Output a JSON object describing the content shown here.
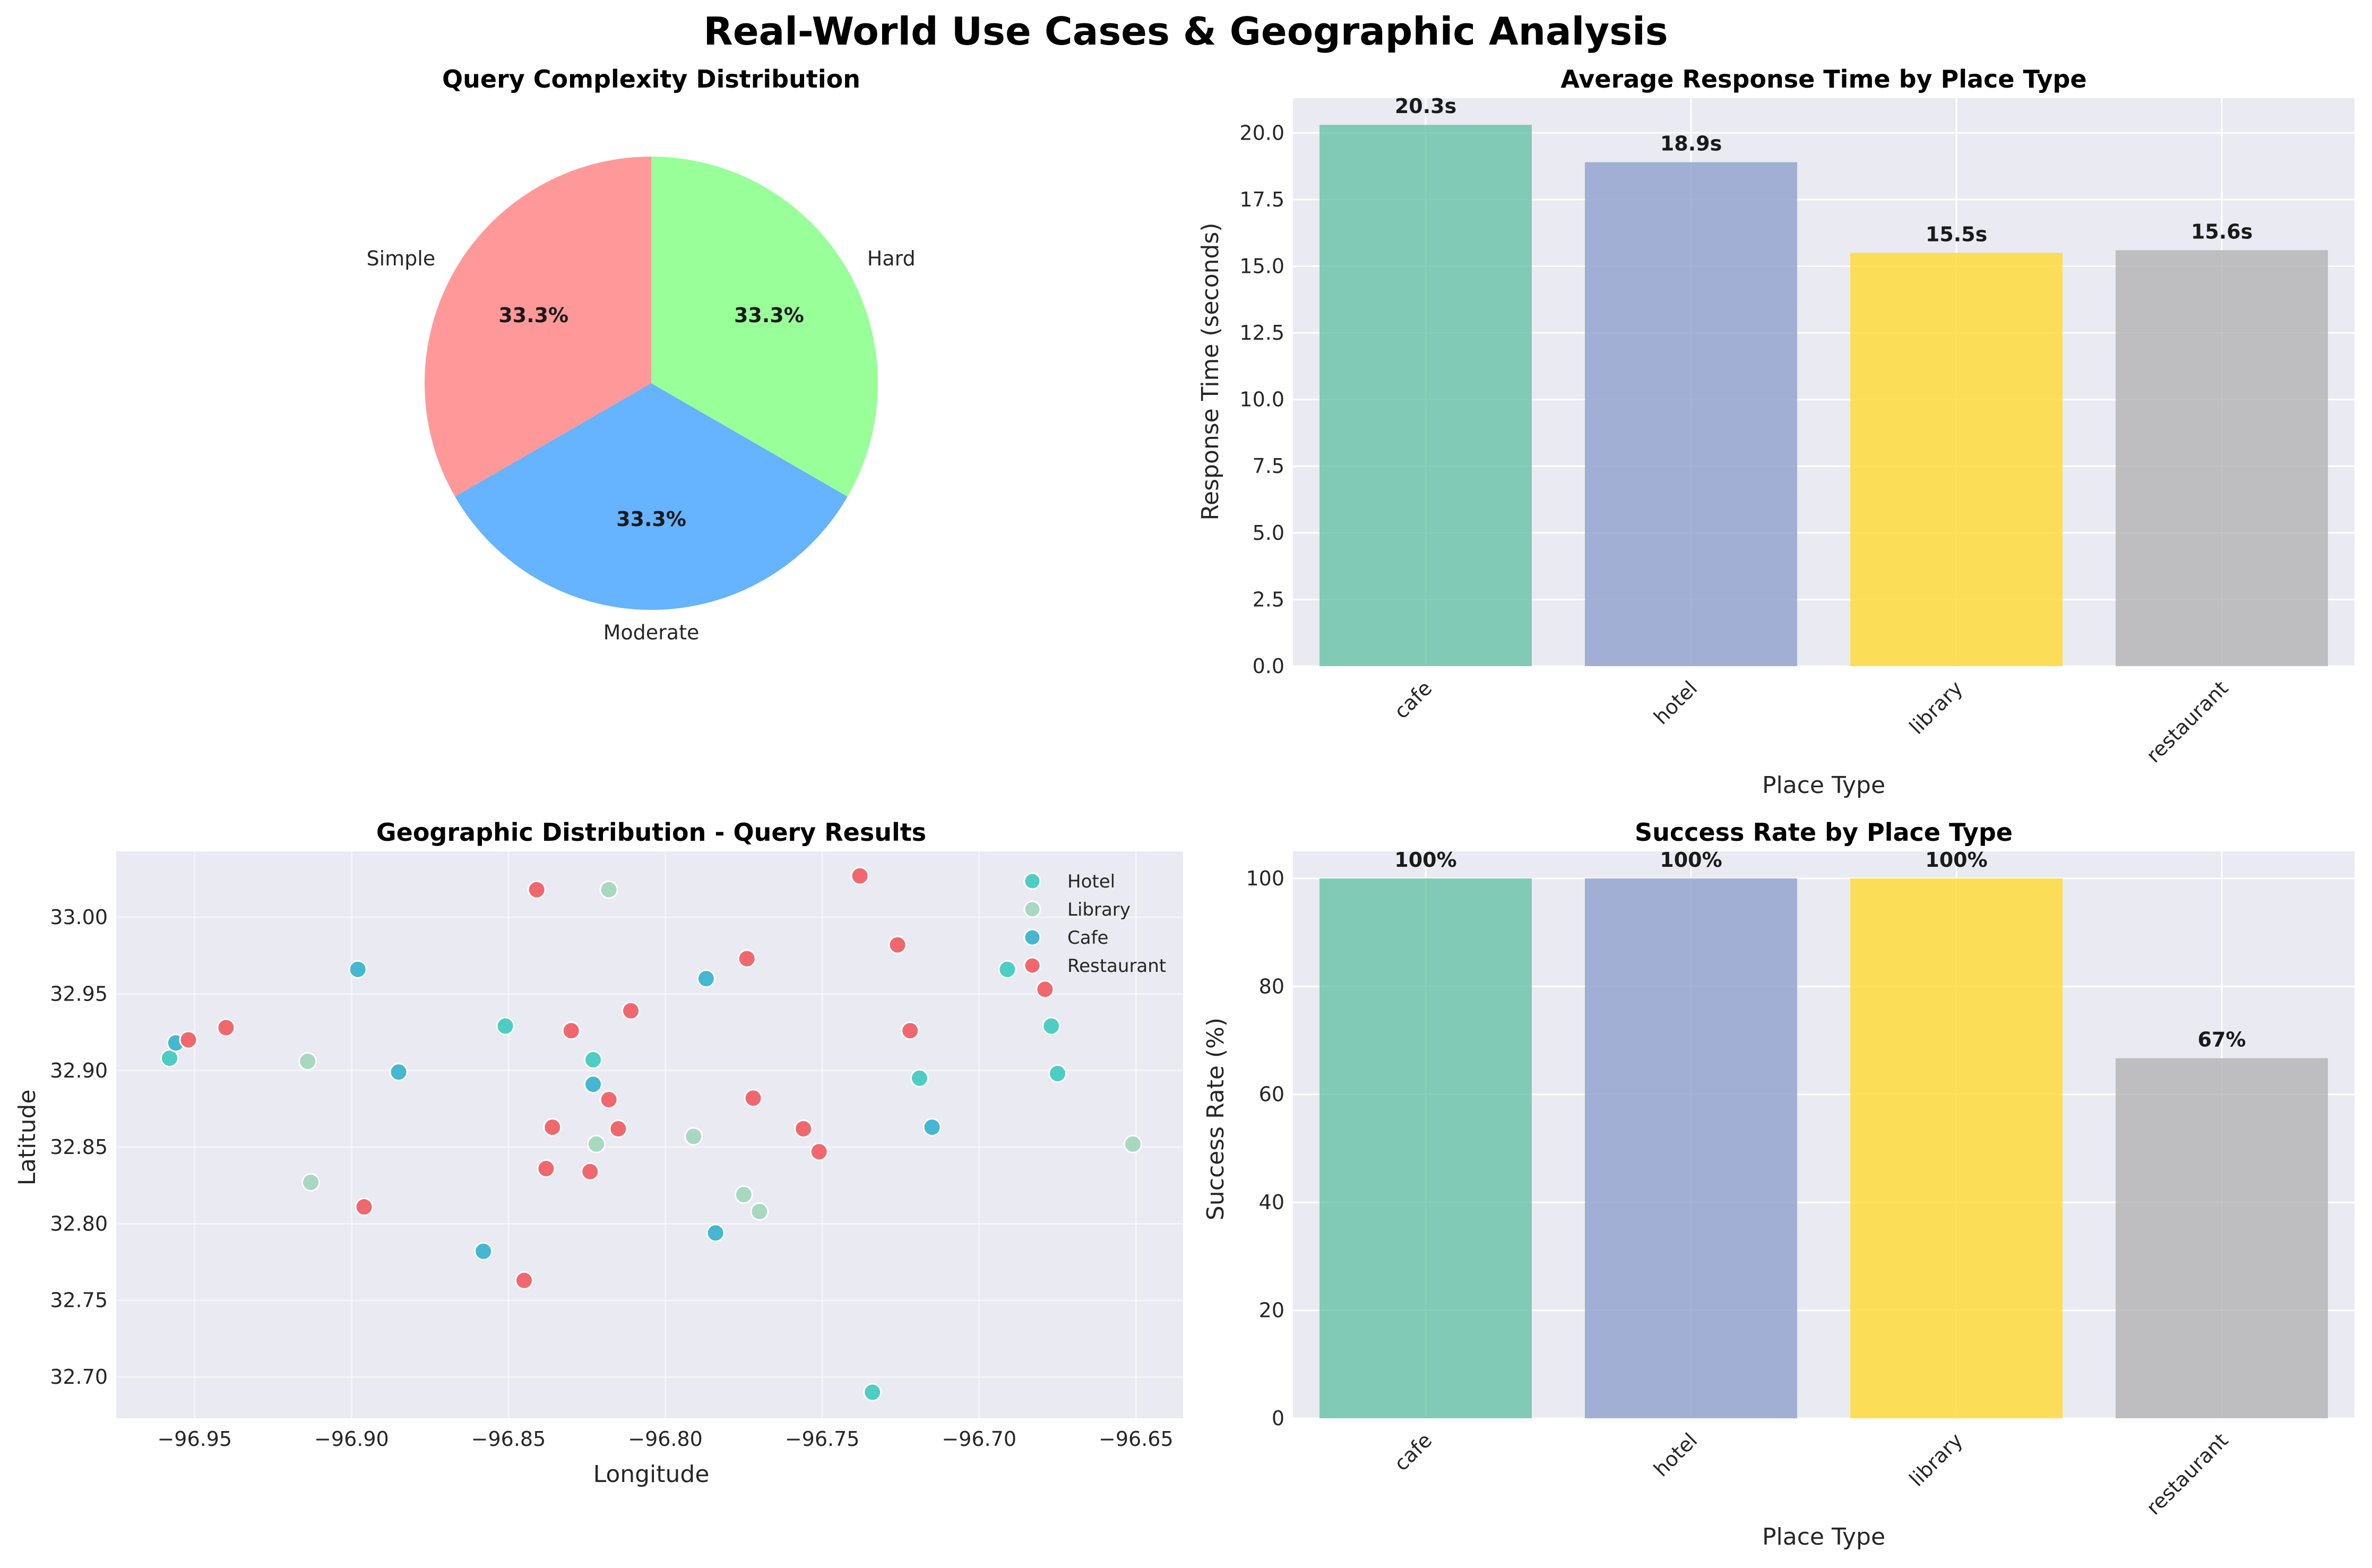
{
  "figure": {
    "title": "Real-World Use Cases & Geographic Analysis"
  },
  "chart_data": [
    {
      "type": "pie",
      "title": "Query Complexity Distribution",
      "categories": [
        "Simple",
        "Moderate",
        "Hard"
      ],
      "values": [
        33.3,
        33.3,
        33.3
      ],
      "labels_pct": [
        "33.3%",
        "33.3%",
        "33.3%"
      ],
      "colors": [
        "#ff9999",
        "#66b3ff",
        "#99ff99"
      ]
    },
    {
      "type": "bar",
      "title": "Average Response Time by Place Type",
      "categories": [
        "cafe",
        "hotel",
        "library",
        "restaurant"
      ],
      "values": [
        20.3,
        18.9,
        15.5,
        15.6
      ],
      "value_labels": [
        "20.3s",
        "18.9s",
        "15.5s",
        "15.6s"
      ],
      "colors": [
        "#66c2a5",
        "#8da0cb",
        "#ffd92f",
        "#b3b3b3"
      ],
      "xlabel": "Place Type",
      "ylabel": "Response Time (seconds)",
      "ylim": [
        0,
        21.3
      ],
      "yticks": [
        "0.0",
        "2.5",
        "5.0",
        "7.5",
        "10.0",
        "12.5",
        "15.0",
        "17.5",
        "20.0"
      ],
      "grid": true
    },
    {
      "type": "scatter",
      "title": "Geographic Distribution - Query Results",
      "xlabel": "Longitude",
      "ylabel": "Latitude",
      "xlim": [
        -96.975,
        -96.635
      ],
      "ylim": [
        32.673,
        33.043
      ],
      "xticks": [
        "−96.95",
        "−96.90",
        "−96.85",
        "−96.80",
        "−96.75",
        "−96.70",
        "−96.65"
      ],
      "yticks": [
        "32.70",
        "32.75",
        "32.80",
        "32.85",
        "32.90",
        "32.95",
        "33.00"
      ],
      "legend_position": "top-right",
      "series": [
        {
          "name": "Hotel",
          "color": "#4ecdc4",
          "points": [
            [
              -96.958,
              32.908
            ],
            [
              -96.851,
              32.929
            ],
            [
              -96.823,
              32.907
            ],
            [
              -96.719,
              32.895
            ],
            [
              -96.691,
              32.966
            ],
            [
              -96.677,
              32.929
            ],
            [
              -96.675,
              32.898
            ],
            [
              -96.734,
              32.69
            ]
          ]
        },
        {
          "name": "Library",
          "color": "#a8d8c0",
          "points": [
            [
              -96.914,
              32.906
            ],
            [
              -96.913,
              32.827
            ],
            [
              -96.818,
              33.018
            ],
            [
              -96.822,
              32.852
            ],
            [
              -96.791,
              32.857
            ],
            [
              -96.775,
              32.819
            ],
            [
              -96.77,
              32.808
            ],
            [
              -96.651,
              32.852
            ]
          ]
        },
        {
          "name": "Cafe",
          "color": "#45b7d1",
          "points": [
            [
              -96.956,
              32.918
            ],
            [
              -96.898,
              32.966
            ],
            [
              -96.885,
              32.899
            ],
            [
              -96.823,
              32.891
            ],
            [
              -96.787,
              32.96
            ],
            [
              -96.858,
              32.782
            ],
            [
              -96.784,
              32.794
            ],
            [
              -96.715,
              32.863
            ]
          ]
        },
        {
          "name": "Restaurant",
          "color": "#f0686e",
          "points": [
            [
              -96.952,
              32.92
            ],
            [
              -96.94,
              32.928
            ],
            [
              -96.896,
              32.811
            ],
            [
              -96.841,
              33.018
            ],
            [
              -96.83,
              32.926
            ],
            [
              -96.811,
              32.939
            ],
            [
              -96.836,
              32.863
            ],
            [
              -96.818,
              32.881
            ],
            [
              -96.815,
              32.862
            ],
            [
              -96.838,
              32.836
            ],
            [
              -96.824,
              32.834
            ],
            [
              -96.845,
              32.763
            ],
            [
              -96.774,
              32.973
            ],
            [
              -96.772,
              32.882
            ],
            [
              -96.756,
              32.862
            ],
            [
              -96.751,
              32.847
            ],
            [
              -96.738,
              33.027
            ],
            [
              -96.726,
              32.982
            ],
            [
              -96.722,
              32.926
            ],
            [
              -96.679,
              32.953
            ]
          ]
        }
      ],
      "grid": true
    },
    {
      "type": "bar",
      "title": "Success Rate by Place Type",
      "categories": [
        "cafe",
        "hotel",
        "library",
        "restaurant"
      ],
      "values": [
        100,
        100,
        100,
        66.7
      ],
      "value_labels": [
        "100%",
        "100%",
        "100%",
        "67%"
      ],
      "colors": [
        "#66c2a5",
        "#8da0cb",
        "#ffd92f",
        "#b3b3b3"
      ],
      "xlabel": "Place Type",
      "ylabel": "Success Rate (%)",
      "ylim": [
        0,
        105
      ],
      "yticks": [
        "0",
        "20",
        "40",
        "60",
        "80",
        "100"
      ],
      "grid": true
    }
  ]
}
